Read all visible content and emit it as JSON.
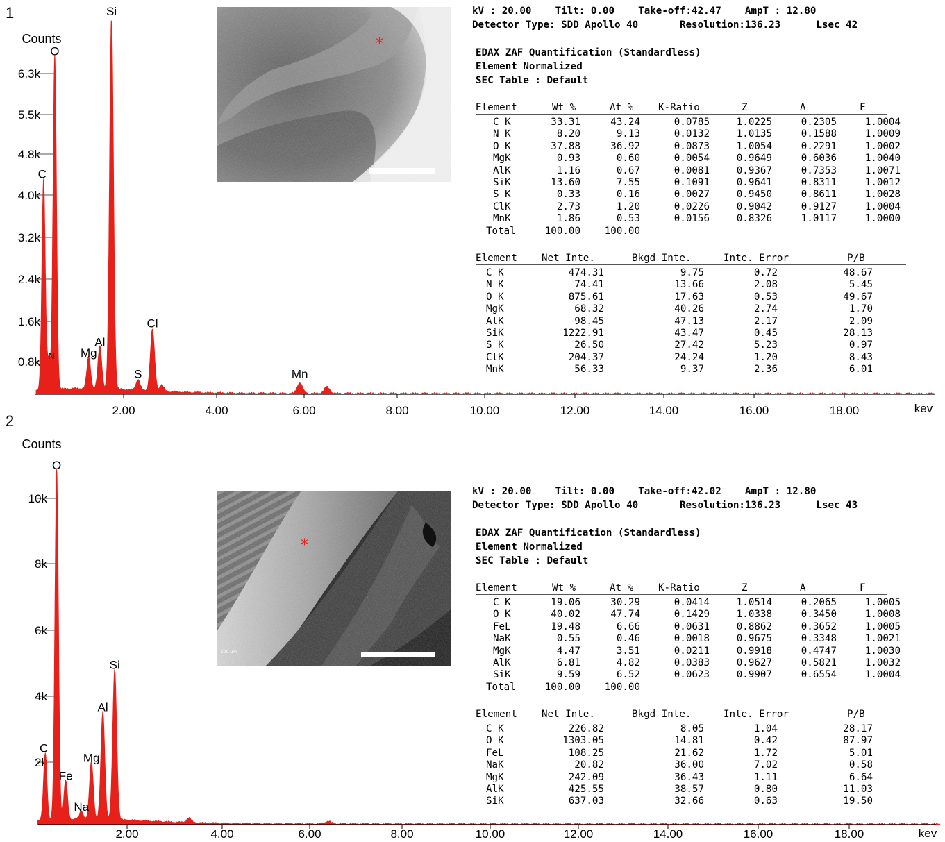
{
  "colors": {
    "spectrum": "#e8201a",
    "marker": "#e8201a",
    "axis": "#000000"
  },
  "panels": [
    {
      "number": "1",
      "chart_data": {
        "type": "line",
        "title": "",
        "ylabel": "Counts",
        "xlabel": "kev",
        "xlim": [
          0.0,
          20.3
        ],
        "ylim": [
          0,
          7000
        ],
        "xticks": [
          2.0,
          4.0,
          6.0,
          8.0,
          10.0,
          12.0,
          14.0,
          16.0,
          18.0
        ],
        "xtick_labels": [
          "2.00",
          "4.00",
          "6.00",
          "8.00",
          "10.00",
          "12.00",
          "14.00",
          "16.00",
          "18.00"
        ],
        "yticks": [
          800,
          1600,
          2400,
          3200,
          4000,
          4800,
          5500,
          6300
        ],
        "ytick_labels": [
          "0.8k",
          "1.6k",
          "2.4k",
          "3.2k",
          "4.0k",
          "4.8k",
          "5.5k",
          "6.3k"
        ],
        "peaks": [
          {
            "label": "C",
            "kev": 0.28,
            "counts": 3950
          },
          {
            "label": "N",
            "kev": 0.39,
            "counts": 560
          },
          {
            "label": "O",
            "kev": 0.52,
            "counts": 6250
          },
          {
            "label": "Mg",
            "kev": 1.25,
            "counts": 600
          },
          {
            "label": "Al",
            "kev": 1.49,
            "counts": 800
          },
          {
            "label": "Si",
            "kev": 1.74,
            "counts": 7000
          },
          {
            "label": "S",
            "kev": 2.31,
            "counts": 200
          },
          {
            "label": "Cl",
            "kev": 2.62,
            "counts": 1150
          },
          {
            "label": "",
            "kev": 2.82,
            "counts": 120
          },
          {
            "label": "Mn",
            "kev": 5.9,
            "counts": 200
          },
          {
            "label": "",
            "kev": 6.49,
            "counts": 120
          }
        ]
      },
      "info": {
        "line1": "kV : 20.00    Tilt: 0.00    Take-off:42.47    AmpT : 12.80",
        "line2": "Detector Type: SDD Apollo 40       Resolution:136.23      Lsec 42",
        "quant_title": "EDAX ZAF Quantification (Standardless)",
        "normalized": "Element Normalized",
        "sec_table": "SEC Table : Default",
        "table1_headers": [
          "Element",
          "Wt %",
          "At %",
          "K-Ratio",
          "Z",
          "A",
          "F"
        ],
        "table1_rows": [
          [
            "C K",
            "33.31",
            "43.24",
            "0.0785",
            "1.0225",
            "0.2305",
            "1.0004"
          ],
          [
            "N K",
            "8.20",
            "9.13",
            "0.0132",
            "1.0135",
            "0.1588",
            "1.0009"
          ],
          [
            "O K",
            "37.88",
            "36.92",
            "0.0873",
            "1.0054",
            "0.2291",
            "1.0002"
          ],
          [
            "MgK",
            "0.93",
            "0.60",
            "0.0054",
            "0.9649",
            "0.6036",
            "1.0040"
          ],
          [
            "AlK",
            "1.16",
            "0.67",
            "0.0081",
            "0.9367",
            "0.7353",
            "1.0071"
          ],
          [
            "SiK",
            "13.60",
            "7.55",
            "0.1091",
            "0.9641",
            "0.8311",
            "1.0012"
          ],
          [
            "S K",
            "0.33",
            "0.16",
            "0.0027",
            "0.9450",
            "0.8611",
            "1.0028"
          ],
          [
            "ClK",
            "2.73",
            "1.20",
            "0.0226",
            "0.9042",
            "0.9127",
            "1.0004"
          ],
          [
            "MnK",
            "1.86",
            "0.53",
            "0.0156",
            "0.8326",
            "1.0117",
            "1.0000"
          ]
        ],
        "total_row": [
          "Total",
          "100.00",
          "100.00"
        ],
        "table2_headers": [
          "Element",
          "Net Inte.",
          "Bkgd Inte.",
          "Inte. Error",
          "P/B"
        ],
        "table2_rows": [
          [
            "C K",
            "474.31",
            "9.75",
            "0.72",
            "48.67"
          ],
          [
            "N K",
            "74.41",
            "13.66",
            "2.08",
            "5.45"
          ],
          [
            "O K",
            "875.61",
            "17.63",
            "0.53",
            "49.67"
          ],
          [
            "MgK",
            "68.32",
            "40.26",
            "2.74",
            "1.70"
          ],
          [
            "AlK",
            "98.45",
            "47.13",
            "2.17",
            "2.09"
          ],
          [
            "SiK",
            "1222.91",
            "43.47",
            "0.45",
            "28.13"
          ],
          [
            "S K",
            "26.50",
            "27.42",
            "5.23",
            "0.97"
          ],
          [
            "ClK",
            "204.37",
            "24.24",
            "1.20",
            "8.43"
          ],
          [
            "MnK",
            "56.33",
            "9.37",
            "2.36",
            "6.01"
          ]
        ]
      }
    },
    {
      "number": "2",
      "chart_data": {
        "type": "line",
        "title": "",
        "ylabel": "Counts",
        "xlabel": "kev",
        "xlim": [
          0.0,
          20.3
        ],
        "ylim": [
          0,
          11000
        ],
        "xticks": [
          2.0,
          4.0,
          6.0,
          8.0,
          10.0,
          12.0,
          14.0,
          16.0,
          18.0
        ],
        "xtick_labels": [
          "2.00",
          "4.00",
          "6.00",
          "8.00",
          "10.00",
          "12.00",
          "14.00",
          "16.00",
          "18.00"
        ],
        "yticks": [
          2000,
          4000,
          6000,
          8000,
          10000
        ],
        "ytick_labels": [
          "2k",
          "4k",
          "6k",
          "8k",
          "10k"
        ],
        "peaks": [
          {
            "label": "C",
            "kev": 0.28,
            "counts": 2050
          },
          {
            "label": "O",
            "kev": 0.52,
            "counts": 10700
          },
          {
            "label": "Fe",
            "kev": 0.71,
            "counts": 1200
          },
          {
            "label": "Na",
            "kev": 1.04,
            "counts": 250
          },
          {
            "label": "Mg",
            "kev": 1.25,
            "counts": 1750
          },
          {
            "label": "Al",
            "kev": 1.49,
            "counts": 3300
          },
          {
            "label": "Si",
            "kev": 1.74,
            "counts": 4600
          },
          {
            "label": "",
            "kev": 3.3,
            "counts": 150
          },
          {
            "label": "",
            "kev": 6.4,
            "counts": 80
          }
        ]
      },
      "info": {
        "line1": "kV : 20.00    Tilt: 0.00    Take-off:42.02    AmpT : 12.80",
        "line2": "Detector Type: SDD Apollo 40       Resolution:136.23      Lsec 43",
        "quant_title": "EDAX ZAF Quantification (Standardless)",
        "normalized": "Element Normalized",
        "sec_table": "SEC Table : Default",
        "table1_headers": [
          "Element",
          "Wt %",
          "At %",
          "K-Ratio",
          "Z",
          "A",
          "F"
        ],
        "table1_rows": [
          [
            "C K",
            "19.06",
            "30.29",
            "0.0414",
            "1.0514",
            "0.2065",
            "1.0005"
          ],
          [
            "O K",
            "40.02",
            "47.74",
            "0.1429",
            "1.0338",
            "0.3450",
            "1.0008"
          ],
          [
            "FeL",
            "19.48",
            "6.66",
            "0.0631",
            "0.8862",
            "0.3652",
            "1.0005"
          ],
          [
            "NaK",
            "0.55",
            "0.46",
            "0.0018",
            "0.9675",
            "0.3348",
            "1.0021"
          ],
          [
            "MgK",
            "4.47",
            "3.51",
            "0.0211",
            "0.9918",
            "0.4747",
            "1.0030"
          ],
          [
            "AlK",
            "6.81",
            "4.82",
            "0.0383",
            "0.9627",
            "0.5821",
            "1.0032"
          ],
          [
            "SiK",
            "9.59",
            "6.52",
            "0.0623",
            "0.9907",
            "0.6554",
            "1.0004"
          ]
        ],
        "total_row": [
          "Total",
          "100.00",
          "100.00"
        ],
        "table2_headers": [
          "Element",
          "Net Inte.",
          "Bkgd Inte.",
          "Inte. Error",
          "P/B"
        ],
        "table2_rows": [
          [
            "C K",
            "226.82",
            "8.05",
            "1.04",
            "28.17"
          ],
          [
            "O K",
            "1303.05",
            "14.81",
            "0.42",
            "87.97"
          ],
          [
            "FeL",
            "108.25",
            "21.62",
            "1.72",
            "5.01"
          ],
          [
            "NaK",
            "20.82",
            "36.00",
            "7.02",
            "0.58"
          ],
          [
            "MgK",
            "242.09",
            "36.43",
            "1.11",
            "6.64"
          ],
          [
            "AlK",
            "425.55",
            "38.57",
            "0.80",
            "11.03"
          ],
          [
            "SiK",
            "637.03",
            "32.66",
            "0.63",
            "19.50"
          ]
        ],
        "sem_scale_text": "100 μm"
      }
    }
  ]
}
